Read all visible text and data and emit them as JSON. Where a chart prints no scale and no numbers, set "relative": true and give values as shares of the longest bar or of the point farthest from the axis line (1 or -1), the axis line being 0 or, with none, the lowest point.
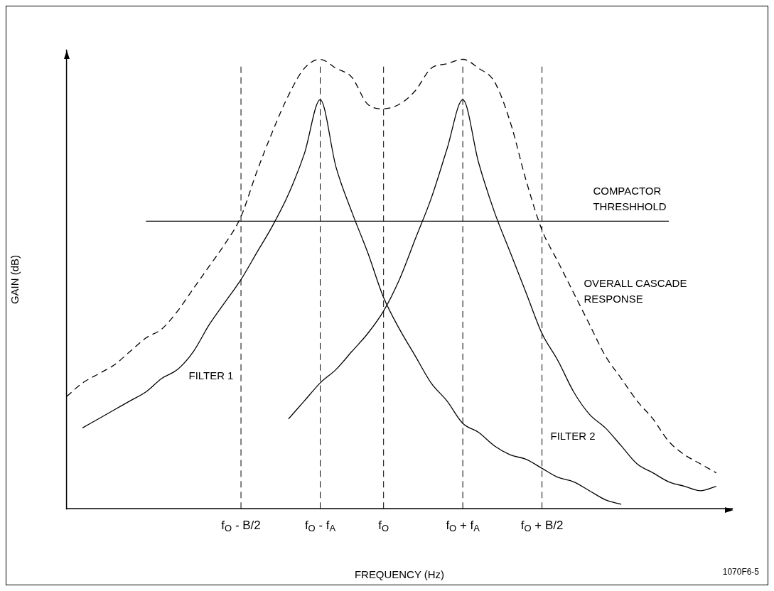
{
  "chart_data": {
    "type": "line",
    "relative": true,
    "xlabel": "FREQUENCY (Hz)",
    "ylabel": "GAIN (dB)",
    "categories": [
      null,
      null,
      null,
      null,
      null,
      null,
      null,
      null,
      null,
      null,
      null,
      "f$_{O}$ - B/2",
      null,
      null,
      null,
      null,
      "f$_{O}$ - f$_{A}$",
      null,
      null,
      null,
      "f$_{O}$",
      null,
      null,
      null,
      null,
      "f$_{O}$ + f$_{A}$",
      null,
      null,
      null,
      null,
      "f$_{O}$ + B/2",
      null,
      null,
      null,
      null,
      null,
      null,
      null,
      null,
      null,
      null,
      null,
      null
    ],
    "marker": "none",
    "grid": false,
    "legend": false,
    "series": [
      {
        "name": "FILTER 1",
        "color": "#000000",
        "line_style": "solid",
        "values": [
          null,
          0.18,
          0.2,
          0.22,
          0.24,
          0.26,
          0.29,
          0.31,
          0.35,
          0.41,
          0.46,
          0.51,
          0.57,
          0.63,
          0.7,
          0.79,
          0.91,
          0.76,
          0.66,
          0.57,
          0.47,
          0.4,
          0.34,
          0.28,
          0.24,
          0.19,
          0.17,
          0.14,
          0.12,
          0.11,
          0.09,
          0.07,
          0.06,
          0.04,
          0.02,
          0.01,
          null,
          null,
          null,
          null,
          null,
          null,
          null
        ]
      },
      {
        "name": "FILTER 2",
        "color": "#000000",
        "line_style": "solid",
        "values": [
          null,
          null,
          null,
          null,
          null,
          null,
          null,
          null,
          null,
          null,
          null,
          null,
          null,
          null,
          0.2,
          0.24,
          0.28,
          0.31,
          0.35,
          0.39,
          0.44,
          0.51,
          0.6,
          0.69,
          0.8,
          0.91,
          0.77,
          0.66,
          0.57,
          0.48,
          0.39,
          0.33,
          0.26,
          0.21,
          0.18,
          0.14,
          0.1,
          0.08,
          0.06,
          0.05,
          0.04,
          0.05,
          null
        ]
      },
      {
        "name": "OVERALL CASCADE RESPONSE",
        "color": "#000000",
        "line_style": "dashed",
        "values": [
          0.25,
          0.28,
          0.3,
          0.32,
          0.35,
          0.38,
          0.4,
          0.44,
          0.49,
          0.54,
          0.59,
          0.65,
          0.75,
          0.84,
          0.92,
          0.98,
          1,
          0.98,
          0.96,
          0.9,
          0.89,
          0.9,
          0.93,
          0.98,
          0.99,
          1,
          0.98,
          0.95,
          0.86,
          0.73,
          0.62,
          0.55,
          0.48,
          0.41,
          0.34,
          0.29,
          0.24,
          0.2,
          0.15,
          0.12,
          0.1,
          0.08,
          null
        ]
      },
      {
        "name": "COMPACTOR THRESHHOLD",
        "color": "#000000",
        "line_style": "solid",
        "values": [
          null,
          null,
          null,
          null,
          null,
          0.64,
          0.64,
          0.64,
          0.64,
          0.64,
          0.64,
          0.64,
          0.64,
          0.64,
          0.64,
          0.64,
          0.64,
          0.64,
          0.64,
          0.64,
          0.64,
          0.64,
          0.64,
          0.64,
          0.64,
          0.64,
          0.64,
          0.64,
          0.64,
          0.64,
          0.64,
          0.64,
          0.64,
          0.64,
          0.64,
          0.64,
          0.64,
          0.64,
          0.64,
          null,
          null,
          null,
          null
        ]
      }
    ],
    "ref_lines": [
      {
        "axis": "x",
        "value": "f$_{O}$ - B/2",
        "line_style": "dashed",
        "color": "#000000"
      },
      {
        "axis": "x",
        "value": "f$_{O}$ - f$_{A}$",
        "line_style": "dashed",
        "color": "#000000"
      },
      {
        "axis": "x",
        "value": "f$_{O}$",
        "line_style": "dashed",
        "color": "#000000"
      },
      {
        "axis": "x",
        "value": "f$_{O}$ + f$_{A}$",
        "line_style": "dashed",
        "color": "#000000"
      },
      {
        "axis": "x",
        "value": "f$_{O}$ + B/2",
        "line_style": "dashed",
        "color": "#000000"
      }
    ],
    "annotations": [
      "1070F6-5"
    ]
  }
}
